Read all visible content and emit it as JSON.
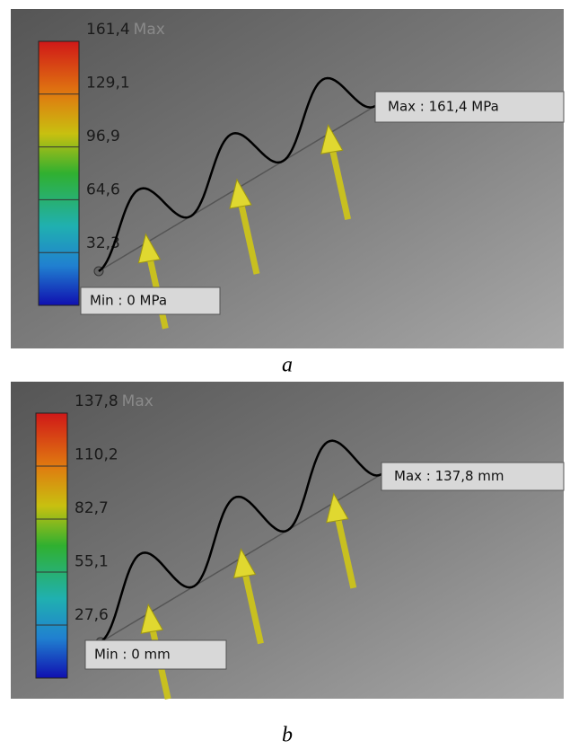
{
  "panels": [
    {
      "legend_labels": [
        "161,4",
        "129,1",
        "96,9",
        "64,6",
        "32,3"
      ],
      "max_word": "Max",
      "max_callout": "Max : 161,4 MPa",
      "min_callout": "Min : 0 MPa",
      "caption": "a"
    },
    {
      "legend_labels": [
        "137,8",
        "110,2",
        "82,7",
        "55,1",
        "27,6"
      ],
      "max_word": "Max",
      "max_callout": "Max : 137,8 mm",
      "min_callout": "Min : 0 mm",
      "caption": "b"
    }
  ]
}
